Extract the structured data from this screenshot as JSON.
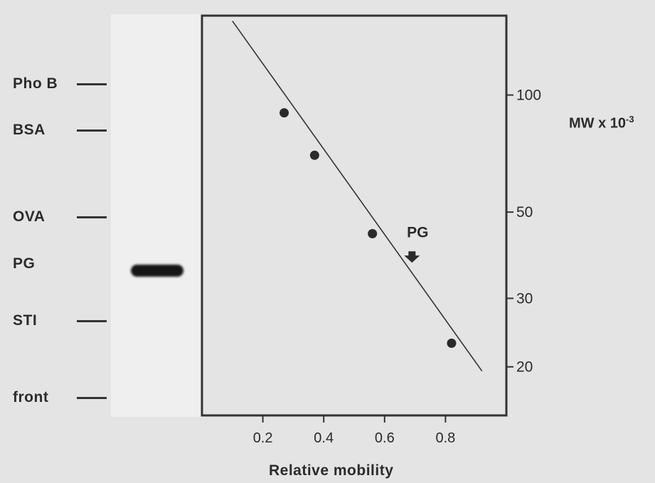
{
  "gel": {
    "markers": [
      {
        "label": "Pho B"
      },
      {
        "label": "BSA"
      },
      {
        "label": "OVA"
      },
      {
        "label": "PG"
      },
      {
        "label": "STI"
      },
      {
        "label": "front"
      }
    ]
  },
  "chart_data": {
    "type": "scatter",
    "xlabel": "Relative mobility",
    "ylabel": "MW x 10",
    "ylabel_exponent": "-3",
    "x_ticks": [
      "0.2",
      "0.4",
      "0.6",
      "0.8"
    ],
    "y_ticks": [
      "20",
      "30",
      "50",
      "100"
    ],
    "y_scale": "log",
    "xlim": [
      0.0,
      1.0
    ],
    "ylim": [
      15,
      160
    ],
    "points": [
      {
        "x": 0.27,
        "y": 90
      },
      {
        "x": 0.37,
        "y": 70
      },
      {
        "x": 0.56,
        "y": 44
      },
      {
        "x": 0.82,
        "y": 23
      }
    ],
    "fit_line": [
      {
        "x": 0.1,
        "y": 155
      },
      {
        "x": 0.92,
        "y": 19.5
      }
    ],
    "annotation": {
      "text": "PG",
      "x": 0.69,
      "y_arrow": 38
    },
    "legend": "none",
    "grid": false
  }
}
